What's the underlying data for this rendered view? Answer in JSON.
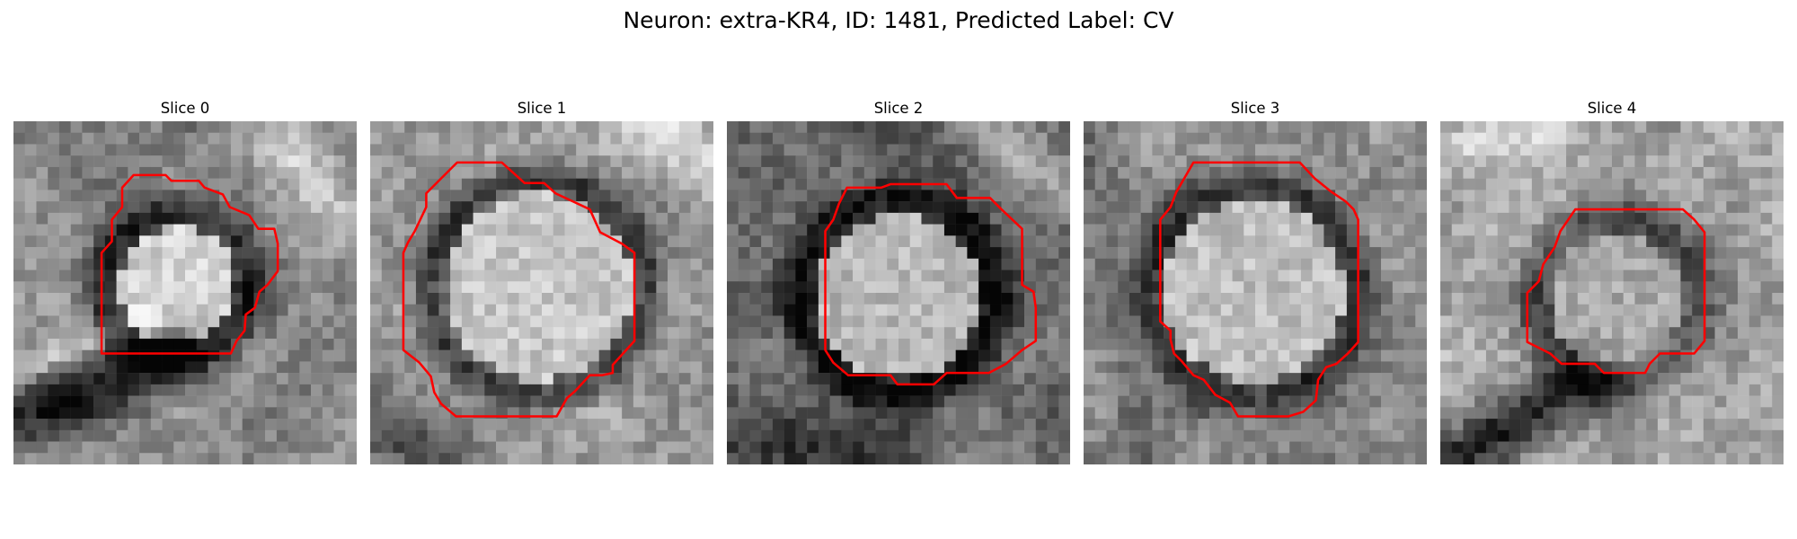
{
  "figure": {
    "suptitle": "Neuron: extra-KR4, ID: 1481, Predicted Label: CV",
    "contour_color": "#ff0000",
    "colormap": "gray",
    "panels": [
      {
        "title": "Slice 0"
      },
      {
        "title": "Slice 1"
      },
      {
        "title": "Slice 2"
      },
      {
        "title": "Slice 3"
      },
      {
        "title": "Slice 4"
      }
    ]
  }
}
